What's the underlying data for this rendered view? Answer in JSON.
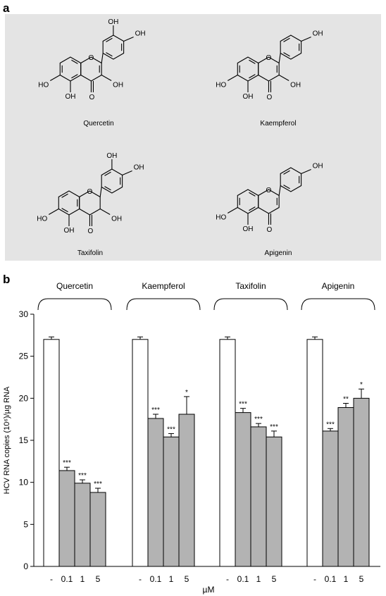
{
  "panel_a": {
    "label": "a",
    "molecules": [
      {
        "name": "Quercetin"
      },
      {
        "name": "Kaempferol"
      },
      {
        "name": "Taxifolin"
      },
      {
        "name": "Apigenin"
      }
    ],
    "atom_labels": {
      "hydroxyl": "OH",
      "hydroxyl_left": "HO",
      "oxygen": "O"
    }
  },
  "panel_b": {
    "label": "b",
    "chart_data": {
      "type": "bar",
      "ylabel": "HCV RNA copies (10⁶)/µg RNA",
      "xlabel": "µM",
      "ylim": [
        0,
        30
      ],
      "yticks": [
        0,
        5,
        10,
        15,
        20,
        25,
        30
      ],
      "groups": [
        {
          "name": "Quercetin",
          "bars": [
            {
              "x": "-",
              "value": 27.0,
              "error": 0.3,
              "sig": "",
              "fill": "#ffffff"
            },
            {
              "x": "0.1",
              "value": 11.4,
              "error": 0.4,
              "sig": "***",
              "fill": "#b3b3b3"
            },
            {
              "x": "1",
              "value": 9.9,
              "error": 0.4,
              "sig": "***",
              "fill": "#b3b3b3"
            },
            {
              "x": "5",
              "value": 8.8,
              "error": 0.5,
              "sig": "***",
              "fill": "#b3b3b3"
            }
          ]
        },
        {
          "name": "Kaempferol",
          "bars": [
            {
              "x": "-",
              "value": 27.0,
              "error": 0.3,
              "sig": "",
              "fill": "#ffffff"
            },
            {
              "x": "0.1",
              "value": 17.6,
              "error": 0.5,
              "sig": "***",
              "fill": "#b3b3b3"
            },
            {
              "x": "1",
              "value": 15.4,
              "error": 0.4,
              "sig": "***",
              "fill": "#b3b3b3"
            },
            {
              "x": "5",
              "value": 18.1,
              "error": 2.1,
              "sig": "*",
              "fill": "#b3b3b3"
            }
          ]
        },
        {
          "name": "Taxifolin",
          "bars": [
            {
              "x": "-",
              "value": 27.0,
              "error": 0.3,
              "sig": "",
              "fill": "#ffffff"
            },
            {
              "x": "0.1",
              "value": 18.3,
              "error": 0.5,
              "sig": "***",
              "fill": "#b3b3b3"
            },
            {
              "x": "1",
              "value": 16.6,
              "error": 0.4,
              "sig": "***",
              "fill": "#b3b3b3"
            },
            {
              "x": "5",
              "value": 15.4,
              "error": 0.7,
              "sig": "***",
              "fill": "#b3b3b3"
            }
          ]
        },
        {
          "name": "Apigenin",
          "bars": [
            {
              "x": "-",
              "value": 27.0,
              "error": 0.3,
              "sig": "",
              "fill": "#ffffff"
            },
            {
              "x": "0.1",
              "value": 16.1,
              "error": 0.3,
              "sig": "***",
              "fill": "#b3b3b3"
            },
            {
              "x": "1",
              "value": 18.9,
              "error": 0.5,
              "sig": "**",
              "fill": "#b3b3b3"
            },
            {
              "x": "5",
              "value": 20.0,
              "error": 1.1,
              "sig": "*",
              "fill": "#b3b3b3"
            }
          ]
        }
      ]
    }
  }
}
